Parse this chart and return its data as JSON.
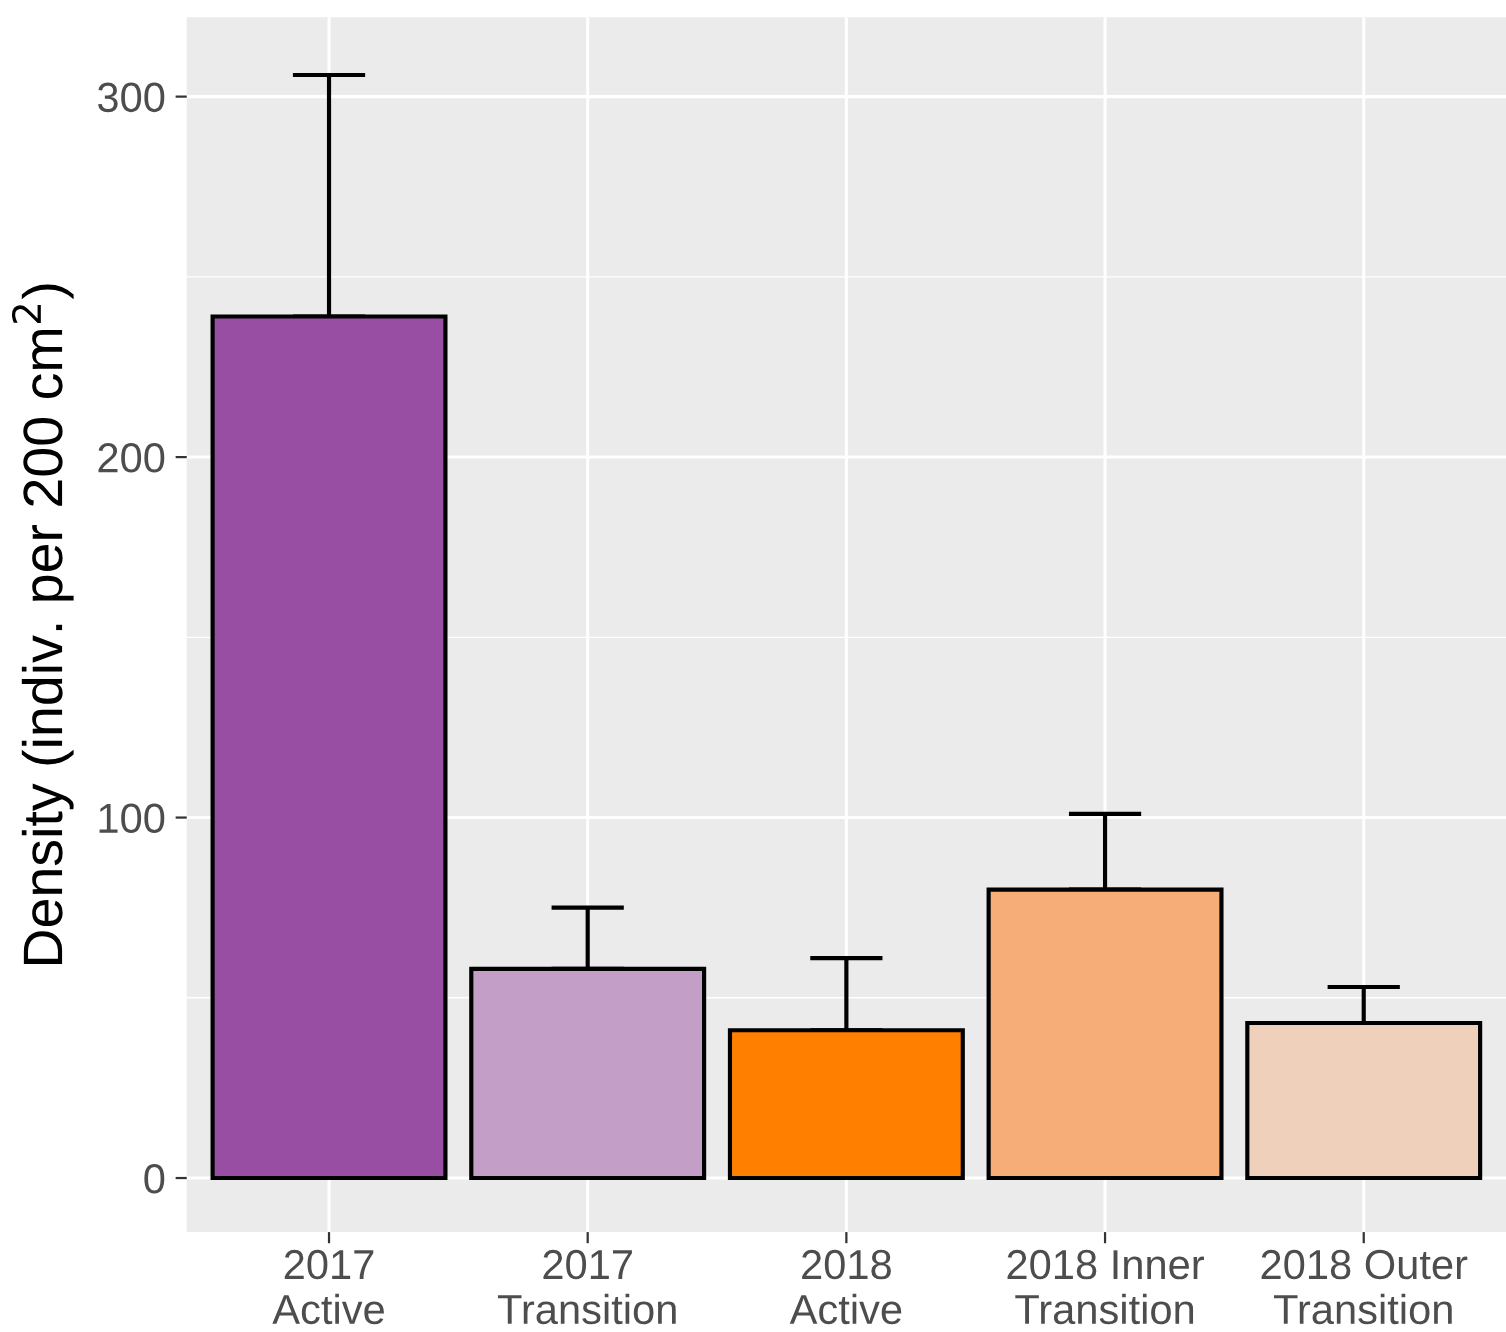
{
  "chart_data": {
    "type": "bar",
    "ylabel": "Density (indiv. per 200 cm$^{2}$)",
    "categories": [
      "2017\nActive",
      "2017\nTransition",
      "2018\nActive",
      "2018 Inner\nTransition",
      "2018 Outer\nTransition"
    ],
    "values": [
      239,
      58,
      41,
      80,
      43
    ],
    "colors": [
      "#984ea3",
      "#c39fc8",
      "#ff7f00",
      "#f6ad78",
      "#efd0ba"
    ],
    "errors": [
      [
        239,
        306
      ],
      [
        58,
        75
      ],
      [
        41,
        61
      ],
      [
        80,
        101
      ],
      [
        43,
        53
      ]
    ],
    "ylim": [
      -15,
      322
    ],
    "yticks": [
      0,
      100,
      200,
      300
    ],
    "grid": true
  }
}
